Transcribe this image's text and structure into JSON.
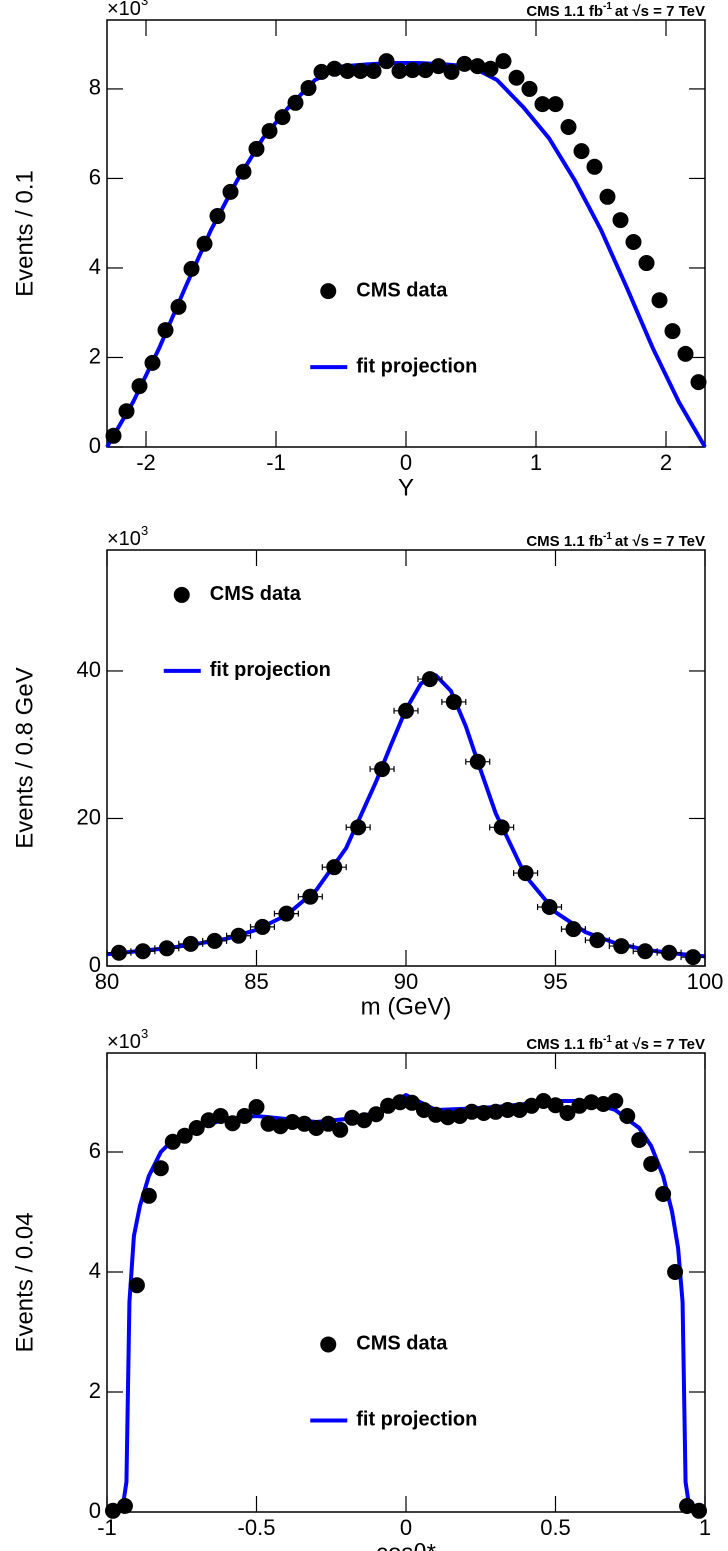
{
  "chart_data": [
    {
      "type": "scatter",
      "annotation": {
        "text": "CMS 1.1 fb",
        "sup": "-1",
        "after": "at √s = 7 TeV"
      },
      "y_multiplier": {
        "base": "×10",
        "exp": "3"
      },
      "x_label": "Y",
      "y_label": "Events / 0.1",
      "xlim": [
        -2.3,
        2.3
      ],
      "xticks": [
        -2,
        -1,
        0,
        1,
        2
      ],
      "ylim": [
        0,
        9.54
      ],
      "yticks": [
        0,
        2,
        4,
        6,
        8
      ],
      "legend": "center",
      "series": [
        {
          "name": "CMS data",
          "color": "#000000",
          "style": "points",
          "x": [
            -2.25,
            -2.15,
            -2.05,
            -1.95,
            -1.85,
            -1.75,
            -1.65,
            -1.55,
            -1.45,
            -1.35,
            -1.25,
            -1.15,
            -1.05,
            -0.95,
            -0.85,
            -0.75,
            -0.65,
            -0.55,
            -0.45,
            -0.35,
            -0.25,
            -0.15,
            -0.05,
            0.05,
            0.15,
            0.25,
            0.35,
            0.45,
            0.55,
            0.65,
            0.75,
            0.85,
            0.95,
            1.05,
            1.15,
            1.25,
            1.35,
            1.45,
            1.55,
            1.65,
            1.75,
            1.85,
            1.95,
            2.05,
            2.15,
            2.25
          ],
          "values": [
            0.25,
            0.8,
            1.36,
            1.88,
            2.61,
            3.13,
            3.98,
            4.54,
            5.16,
            5.7,
            6.15,
            6.66,
            7.06,
            7.37,
            7.69,
            8.02,
            8.38,
            8.45,
            8.4,
            8.4,
            8.4,
            8.62,
            8.4,
            8.42,
            8.42,
            8.51,
            8.38,
            8.56,
            8.51,
            8.45,
            8.62,
            8.25,
            8.0,
            7.66,
            7.66,
            7.15,
            6.61,
            6.26,
            5.59,
            5.07,
            4.58,
            4.11,
            3.28,
            2.59,
            2.08,
            1.45
          ]
        },
        {
          "name": "fit projection",
          "color": "#0000ff",
          "style": "line",
          "x": [
            -2.3,
            -2.1,
            -1.9,
            -1.7,
            -1.5,
            -1.3,
            -1.1,
            -0.9,
            -0.7,
            -0.5,
            -0.3,
            -0.1,
            0.1,
            0.3,
            0.5,
            0.7,
            0.9,
            1.1,
            1.3,
            1.5,
            1.7,
            1.9,
            2.1,
            2.3
          ],
          "values": [
            0,
            1.0,
            2.2,
            3.55,
            4.85,
            5.95,
            6.9,
            7.6,
            8.2,
            8.5,
            8.55,
            8.58,
            8.58,
            8.55,
            8.5,
            8.2,
            7.6,
            6.9,
            5.95,
            4.85,
            3.55,
            2.2,
            1.0,
            0
          ]
        }
      ]
    },
    {
      "type": "scatter",
      "annotation": {
        "text": "CMS 1.1 fb",
        "sup": "-1",
        "after": "at √s = 7 TeV"
      },
      "y_multiplier": {
        "base": "×10",
        "exp": "3"
      },
      "x_label": "m (GeV)",
      "y_label": "Events / 0.8 GeV",
      "xlim": [
        80,
        100
      ],
      "xticks": [
        80,
        85,
        90,
        95,
        100
      ],
      "ylim": [
        0,
        56.4
      ],
      "yticks": [
        0,
        20,
        40
      ],
      "legend": "upper left",
      "series": [
        {
          "name": "CMS data",
          "color": "#000000",
          "style": "points",
          "x": [
            80.4,
            81.2,
            82.0,
            82.8,
            83.6,
            84.4,
            85.2,
            86.0,
            86.8,
            87.6,
            88.4,
            89.2,
            90.0,
            90.8,
            91.6,
            92.4,
            93.2,
            94.0,
            94.8,
            95.6,
            96.4,
            97.2,
            98.0,
            98.8,
            99.6
          ],
          "xerr": [
            0.4,
            0.4,
            0.4,
            0.4,
            0.4,
            0.4,
            0.4,
            0.4,
            0.4,
            0.4,
            0.4,
            0.4,
            0.4,
            0.4,
            0.4,
            0.4,
            0.4,
            0.4,
            0.4,
            0.4,
            0.4,
            0.4,
            0.4,
            0.4,
            0.4
          ],
          "values": [
            1.8,
            2.0,
            2.4,
            3.0,
            3.4,
            4.1,
            5.3,
            7.1,
            9.4,
            13.4,
            18.8,
            26.7,
            34.6,
            38.9,
            35.8,
            27.7,
            18.8,
            12.6,
            8.0,
            5.0,
            3.5,
            2.7,
            2.0,
            1.8,
            1.2
          ]
        },
        {
          "name": "fit projection",
          "color": "#0000ff",
          "style": "line",
          "x": [
            80,
            81,
            82,
            83,
            84,
            85,
            86,
            87,
            88,
            89,
            89.5,
            90,
            90.5,
            91,
            91.5,
            92,
            92.5,
            93,
            94,
            95,
            96,
            97,
            98,
            99,
            100
          ],
          "values": [
            1.6,
            2.0,
            2.4,
            3.0,
            3.7,
            4.9,
            6.9,
            10.3,
            16,
            25,
            30,
            34.8,
            38.3,
            39.4,
            37.3,
            32.5,
            26.5,
            20.7,
            12.2,
            7.3,
            4.6,
            3.1,
            2.2,
            1.7,
            1.3
          ]
        }
      ]
    },
    {
      "type": "scatter",
      "annotation": {
        "text": "CMS 1.1 fb",
        "sup": "-1",
        "after": "at √s = 7 TeV"
      },
      "y_multiplier": {
        "base": "×10",
        "exp": "3"
      },
      "x_label": "cosθ*",
      "y_label": "Events / 0.04",
      "xlim": [
        -1,
        1
      ],
      "xticks": [
        -1,
        -0.5,
        0,
        0.5,
        1
      ],
      "ylim": [
        0,
        7.65
      ],
      "yticks": [
        0,
        2,
        4,
        6
      ],
      "legend": "center",
      "series": [
        {
          "name": "CMS data",
          "color": "#000000",
          "style": "points",
          "x": [
            -0.98,
            -0.94,
            -0.9,
            -0.86,
            -0.82,
            -0.78,
            -0.74,
            -0.7,
            -0.66,
            -0.62,
            -0.58,
            -0.54,
            -0.5,
            -0.46,
            -0.42,
            -0.38,
            -0.34,
            -0.3,
            -0.26,
            -0.22,
            -0.18,
            -0.14,
            -0.1,
            -0.06,
            -0.02,
            0.02,
            0.06,
            0.1,
            0.14,
            0.18,
            0.22,
            0.26,
            0.3,
            0.34,
            0.38,
            0.42,
            0.46,
            0.5,
            0.54,
            0.58,
            0.62,
            0.66,
            0.7,
            0.74,
            0.78,
            0.82,
            0.86,
            0.9,
            0.94,
            0.98
          ],
          "values": [
            0.02,
            0.1,
            3.78,
            5.27,
            5.73,
            6.17,
            6.27,
            6.4,
            6.53,
            6.6,
            6.48,
            6.6,
            6.75,
            6.47,
            6.43,
            6.5,
            6.47,
            6.4,
            6.47,
            6.37,
            6.57,
            6.53,
            6.63,
            6.77,
            6.83,
            6.82,
            6.7,
            6.62,
            6.58,
            6.6,
            6.67,
            6.65,
            6.67,
            6.7,
            6.7,
            6.77,
            6.85,
            6.78,
            6.65,
            6.77,
            6.83,
            6.8,
            6.85,
            6.6,
            6.2,
            5.8,
            5.3,
            4.0,
            0.1,
            0.02
          ]
        },
        {
          "name": "fit projection",
          "color": "#0000ff",
          "style": "line",
          "x": [
            -0.95,
            -0.935,
            -0.925,
            -0.91,
            -0.89,
            -0.86,
            -0.82,
            -0.78,
            -0.7,
            -0.6,
            -0.5,
            -0.4,
            -0.3,
            -0.2,
            -0.1,
            0,
            0.1,
            0.2,
            0.3,
            0.4,
            0.5,
            0.6,
            0.7,
            0.78,
            0.82,
            0.86,
            0.89,
            0.91,
            0.925,
            0.935,
            0.95
          ],
          "values": [
            0,
            0.5,
            3.5,
            4.6,
            5.1,
            5.6,
            6.0,
            6.2,
            6.4,
            6.55,
            6.6,
            6.55,
            6.5,
            6.55,
            6.65,
            6.95,
            6.7,
            6.72,
            6.75,
            6.8,
            6.85,
            6.85,
            6.7,
            6.4,
            6.1,
            5.6,
            5.0,
            4.4,
            3.5,
            0.5,
            0
          ]
        }
      ]
    }
  ]
}
